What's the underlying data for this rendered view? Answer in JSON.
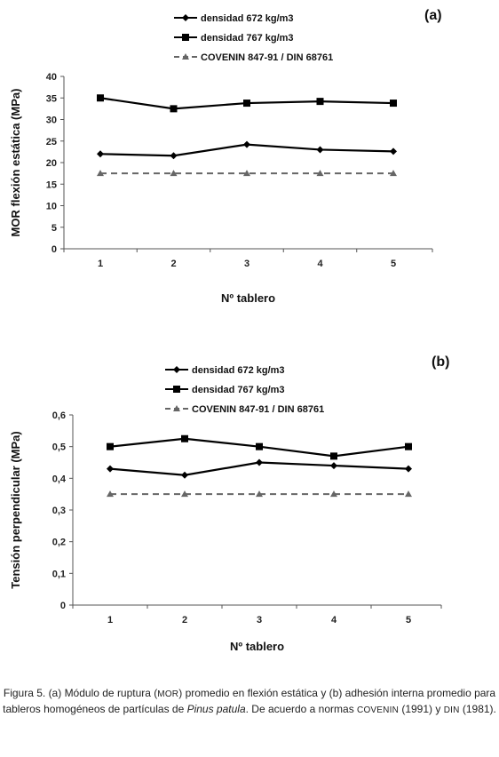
{
  "chart_data": [
    {
      "type": "line",
      "panel": "(a)",
      "xlabel": "Nº tablero",
      "ylabel": "MOR flexión estática (MPa)",
      "categories": [
        "1",
        "2",
        "3",
        "4",
        "5"
      ],
      "ylim": [
        0,
        40
      ],
      "yticks": [
        "0",
        "5",
        "10",
        "15",
        "20",
        "25",
        "30",
        "35",
        "40"
      ],
      "grid": false,
      "legend_position": "top-center",
      "series": [
        {
          "name": "densidad 672 kg/m3",
          "marker": "diamond",
          "style": "solid",
          "color": "#000000",
          "values": [
            22.0,
            21.6,
            24.2,
            23.0,
            22.6
          ]
        },
        {
          "name": "densidad 767 kg/m3",
          "marker": "square",
          "style": "solid",
          "color": "#000000",
          "values": [
            35.0,
            32.5,
            33.8,
            34.2,
            33.8
          ]
        },
        {
          "name": "COVENIN 847-91  / DIN 68761",
          "marker": "triangle",
          "style": "dashed",
          "color": "#666666",
          "values": [
            17.5,
            17.5,
            17.5,
            17.5,
            17.5
          ]
        }
      ]
    },
    {
      "type": "line",
      "panel": "(b)",
      "xlabel": "Nº tablero",
      "ylabel": "Tensión perpendicular (MPa)",
      "categories": [
        "1",
        "2",
        "3",
        "4",
        "5"
      ],
      "ylim": [
        0,
        0.6
      ],
      "yticks": [
        "0",
        "0,1",
        "0,2",
        "0,3",
        "0,4",
        "0,5",
        "0,6"
      ],
      "grid": false,
      "legend_position": "top-center",
      "series": [
        {
          "name": "densidad 672 kg/m3",
          "marker": "diamond",
          "style": "solid",
          "color": "#000000",
          "values": [
            0.43,
            0.41,
            0.45,
            0.44,
            0.43
          ]
        },
        {
          "name": "densidad 767 kg/m3",
          "marker": "square",
          "style": "solid",
          "color": "#000000",
          "values": [
            0.5,
            0.525,
            0.5,
            0.47,
            0.5
          ]
        },
        {
          "name": "COVENIN 847-91  / DIN 68761",
          "marker": "triangle",
          "style": "dashed",
          "color": "#666666",
          "values": [
            0.35,
            0.35,
            0.35,
            0.35,
            0.35
          ]
        }
      ]
    }
  ],
  "caption": {
    "p1": "Figura 5. (a) Módulo de ruptura (",
    "mor": "MOR",
    "p2": ") promedio en flexión estática y (b) adhesión interna promedio para tableros homogéneos de partículas de ",
    "species": "Pinus patula",
    "p3": ". De acuerdo a normas ",
    "covenin": "COVENIN",
    "p4": " (1991) y ",
    "din": "DIN",
    "p5": " (1981)."
  }
}
